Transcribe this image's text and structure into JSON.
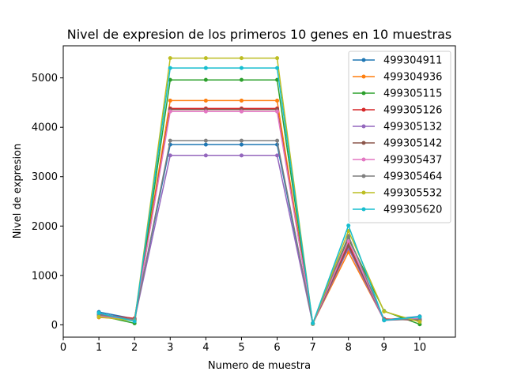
{
  "chart_data": {
    "type": "line",
    "title": "Nivel de expresion de los primeros 10 genes en 10 muestras",
    "xlabel": "Numero de muestra",
    "ylabel": "Nivel de expresion",
    "xlim": [
      0,
      11
    ],
    "ylim": [
      -250,
      5650
    ],
    "xticks": [
      0,
      1,
      2,
      3,
      4,
      5,
      6,
      7,
      8,
      9,
      10
    ],
    "yticks": [
      0,
      1000,
      2000,
      3000,
      4000,
      5000
    ],
    "x": [
      1,
      2,
      3,
      4,
      5,
      6,
      7,
      8,
      9,
      10
    ],
    "grid": false,
    "legend_position": "upper right",
    "series": [
      {
        "name": "499304911",
        "color": "#1f77b4",
        "values": [
          260,
          120,
          3650,
          3650,
          3650,
          3650,
          20,
          1600,
          100,
          170
        ]
      },
      {
        "name": "499304936",
        "color": "#ff7f0e",
        "values": [
          150,
          110,
          4540,
          4540,
          4540,
          4540,
          25,
          1470,
          100,
          110
        ]
      },
      {
        "name": "499305115",
        "color": "#2ca02c",
        "values": [
          190,
          30,
          4960,
          4960,
          4960,
          4960,
          15,
          1750,
          280,
          10
        ]
      },
      {
        "name": "499305126",
        "color": "#d62728",
        "values": [
          210,
          130,
          4380,
          4380,
          4380,
          4380,
          30,
          1650,
          120,
          90
        ]
      },
      {
        "name": "499305132",
        "color": "#9467bd",
        "values": [
          230,
          100,
          3430,
          3430,
          3430,
          3430,
          20,
          1550,
          90,
          120
        ]
      },
      {
        "name": "499305142",
        "color": "#8c564b",
        "values": [
          170,
          90,
          4360,
          4360,
          4360,
          4360,
          25,
          1600,
          110,
          100
        ]
      },
      {
        "name": "499305437",
        "color": "#e377c2",
        "values": [
          180,
          100,
          4320,
          4320,
          4320,
          4320,
          20,
          1700,
          95,
          130
        ]
      },
      {
        "name": "499305464",
        "color": "#7f7f7f",
        "values": [
          200,
          110,
          3730,
          3730,
          3730,
          3730,
          30,
          1800,
          100,
          110
        ]
      },
      {
        "name": "499305532",
        "color": "#bcbd22",
        "values": [
          160,
          80,
          5400,
          5400,
          5400,
          5400,
          25,
          1900,
          270,
          60
        ]
      },
      {
        "name": "499305620",
        "color": "#17becf",
        "values": [
          240,
          70,
          5200,
          5200,
          5200,
          5200,
          30,
          2010,
          90,
          160
        ]
      }
    ]
  }
}
